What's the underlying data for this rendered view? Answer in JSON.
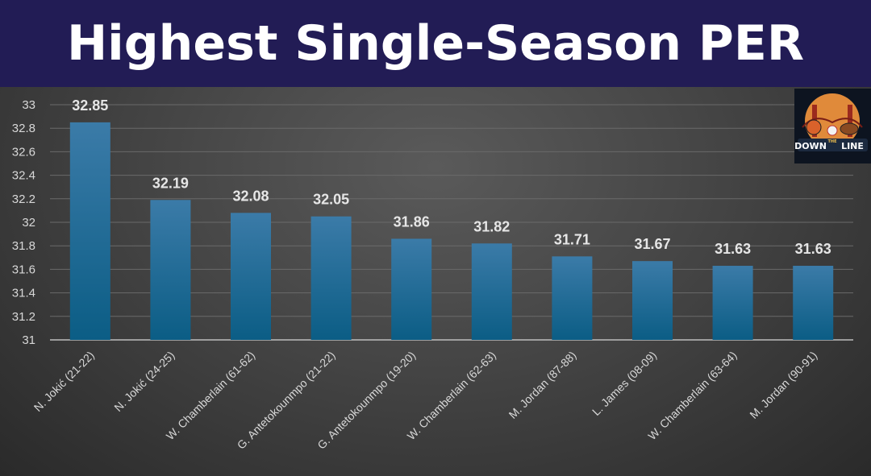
{
  "header": {
    "title": "Highest Single-Season PER"
  },
  "logo": {
    "text_top": "DOWN",
    "text_mid": "THE",
    "text_bottom": "LINE",
    "icon": "down-the-line-logo"
  },
  "colors": {
    "header_bg": "#221c55",
    "bar_top": "#3b7ba8",
    "bar_bottom": "#0d5f86",
    "label": "#e6e6e6",
    "tick": "#d8d8d8",
    "grid": "#6a6a6a"
  },
  "chart_data": {
    "type": "bar",
    "title": "Highest Single-Season PER",
    "categories": [
      "N. Jokić (21-22)",
      "N. Jokić (24-25)",
      "W. Chamberlain (61-62)",
      "G. Antetokounmpo (21-22)",
      "G. Antetokounmpo (19-20)",
      "W. Chamberlain (62-63)",
      "M. Jordan (87-88)",
      "L. James (08-09)",
      "W. Chamberlain (63-64)",
      "M. Jordan (90-91)"
    ],
    "values": [
      32.85,
      32.19,
      32.08,
      32.05,
      31.86,
      31.82,
      31.71,
      31.67,
      31.63,
      31.63
    ],
    "data_labels": [
      "32.85",
      "32.19",
      "32.08",
      "32.05",
      "31.86",
      "31.82",
      "31.71",
      "31.67",
      "31.63",
      "31.63"
    ],
    "yticks": [
      "31",
      "31.2",
      "31.4",
      "31.6",
      "31.8",
      "32",
      "32.2",
      "32.4",
      "32.6",
      "32.8",
      "33"
    ],
    "ylim": [
      31,
      33
    ],
    "grid": true,
    "legend": "none"
  }
}
